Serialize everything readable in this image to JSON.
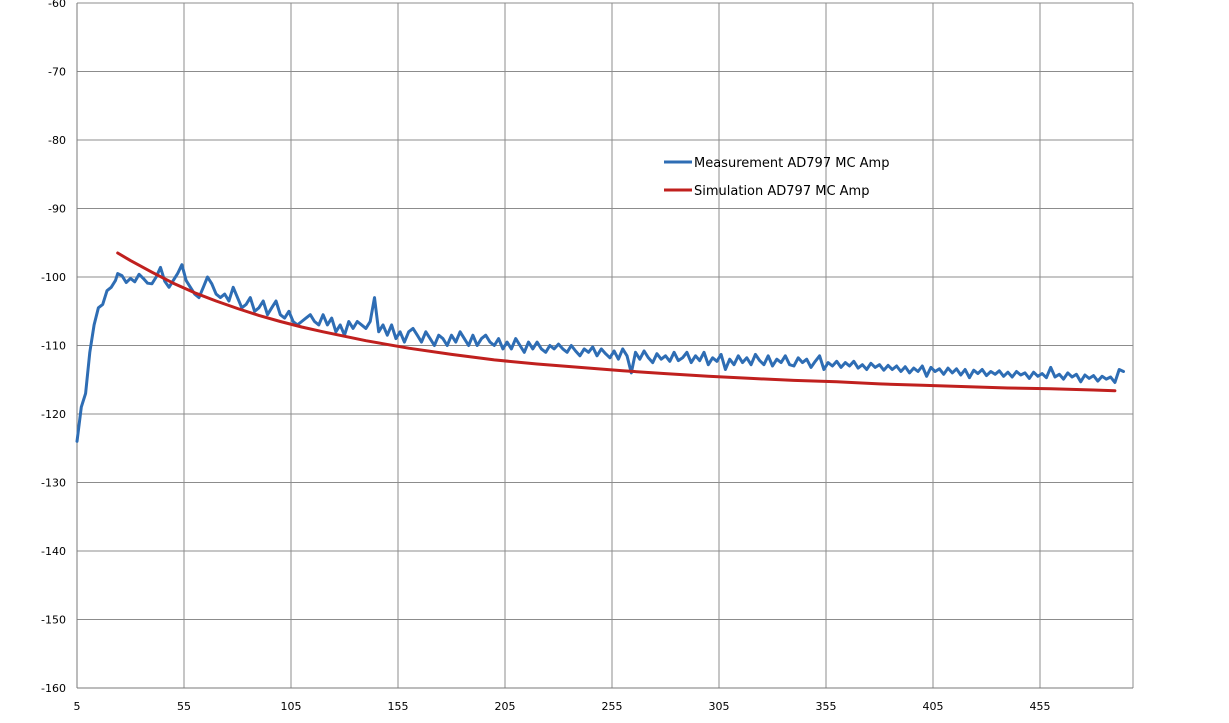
{
  "chart_data": {
    "type": "line",
    "title": "",
    "xlabel": "",
    "ylabel": "",
    "xlim": [
      5,
      495
    ],
    "ylim": [
      -160,
      -60
    ],
    "x_ticks": [
      "5",
      "55",
      "105",
      "155",
      "205",
      "255",
      "305",
      "355",
      "405",
      "455"
    ],
    "y_ticks": [
      "-60",
      "-70",
      "-80",
      "-90",
      "-100",
      "-110",
      "-120",
      "-130",
      "-140",
      "-150",
      "-160"
    ],
    "grid": true,
    "legend_position": "upper-right-center",
    "series": [
      {
        "name": "Measurement AD797 MC Amp",
        "color": "#2e6db4",
        "points": [
          [
            5,
            -124
          ],
          [
            7,
            -119
          ],
          [
            9,
            -117
          ],
          [
            11,
            -111
          ],
          [
            13,
            -107
          ],
          [
            15,
            -104.5
          ],
          [
            17,
            -104
          ],
          [
            19,
            -102
          ],
          [
            21,
            -101.5
          ],
          [
            23,
            -100.5
          ],
          [
            24,
            -99.5
          ],
          [
            26,
            -99.8
          ],
          [
            28,
            -100.8
          ],
          [
            30,
            -100.2
          ],
          [
            32,
            -100.7
          ],
          [
            34,
            -99.6
          ],
          [
            36,
            -100.2
          ],
          [
            38,
            -100.9
          ],
          [
            40,
            -101
          ],
          [
            42,
            -100
          ],
          [
            44,
            -98.6
          ],
          [
            46,
            -100.6
          ],
          [
            48,
            -101.5
          ],
          [
            50,
            -100.5
          ],
          [
            52,
            -99.5
          ],
          [
            54,
            -98.2
          ],
          [
            56,
            -100.5
          ],
          [
            58,
            -101.5
          ],
          [
            60,
            -102.5
          ],
          [
            62,
            -103
          ],
          [
            64,
            -101.5
          ],
          [
            66,
            -100
          ],
          [
            68,
            -101
          ],
          [
            70,
            -102.5
          ],
          [
            72,
            -103
          ],
          [
            74,
            -102.5
          ],
          [
            76,
            -103.5
          ],
          [
            78,
            -101.5
          ],
          [
            80,
            -103
          ],
          [
            82,
            -104.5
          ],
          [
            84,
            -104
          ],
          [
            86,
            -103
          ],
          [
            88,
            -105
          ],
          [
            90,
            -104.5
          ],
          [
            92,
            -103.5
          ],
          [
            94,
            -105.5
          ],
          [
            96,
            -104.5
          ],
          [
            98,
            -103.5
          ],
          [
            100,
            -105.5
          ],
          [
            102,
            -106
          ],
          [
            104,
            -105
          ],
          [
            106,
            -106.5
          ],
          [
            108,
            -107
          ],
          [
            110,
            -106.5
          ],
          [
            112,
            -106
          ],
          [
            114,
            -105.5
          ],
          [
            116,
            -106.5
          ],
          [
            118,
            -107
          ],
          [
            120,
            -105.5
          ],
          [
            122,
            -107
          ],
          [
            124,
            -106
          ],
          [
            126,
            -108
          ],
          [
            128,
            -107
          ],
          [
            130,
            -108.5
          ],
          [
            132,
            -106.5
          ],
          [
            134,
            -107.5
          ],
          [
            136,
            -106.5
          ],
          [
            138,
            -107
          ],
          [
            140,
            -107.5
          ],
          [
            142,
            -106.5
          ],
          [
            144,
            -103
          ],
          [
            146,
            -108
          ],
          [
            148,
            -107
          ],
          [
            150,
            -108.5
          ],
          [
            152,
            -107
          ],
          [
            154,
            -109
          ],
          [
            156,
            -108
          ],
          [
            158,
            -109.5
          ],
          [
            160,
            -108
          ],
          [
            162,
            -107.5
          ],
          [
            164,
            -108.5
          ],
          [
            166,
            -109.5
          ],
          [
            168,
            -108
          ],
          [
            170,
            -109
          ],
          [
            172,
            -110
          ],
          [
            174,
            -108.5
          ],
          [
            176,
            -109
          ],
          [
            178,
            -110
          ],
          [
            180,
            -108.5
          ],
          [
            182,
            -109.5
          ],
          [
            184,
            -108
          ],
          [
            186,
            -109
          ],
          [
            188,
            -110
          ],
          [
            190,
            -108.5
          ],
          [
            192,
            -110
          ],
          [
            194,
            -109
          ],
          [
            196,
            -108.5
          ],
          [
            198,
            -109.5
          ],
          [
            200,
            -110
          ],
          [
            202,
            -109
          ],
          [
            204,
            -110.5
          ],
          [
            206,
            -109.5
          ],
          [
            208,
            -110.5
          ],
          [
            210,
            -109
          ],
          [
            212,
            -110
          ],
          [
            214,
            -111
          ],
          [
            216,
            -109.5
          ],
          [
            218,
            -110.5
          ],
          [
            220,
            -109.5
          ],
          [
            222,
            -110.5
          ],
          [
            224,
            -111
          ],
          [
            226,
            -110
          ],
          [
            228,
            -110.5
          ],
          [
            230,
            -109.8
          ],
          [
            232,
            -110.5
          ],
          [
            234,
            -111
          ],
          [
            236,
            -110
          ],
          [
            238,
            -110.8
          ],
          [
            240,
            -111.5
          ],
          [
            242,
            -110.5
          ],
          [
            244,
            -111
          ],
          [
            246,
            -110.2
          ],
          [
            248,
            -111.5
          ],
          [
            250,
            -110.5
          ],
          [
            252,
            -111.2
          ],
          [
            254,
            -111.8
          ],
          [
            256,
            -110.8
          ],
          [
            258,
            -112
          ],
          [
            260,
            -110.5
          ],
          [
            262,
            -111.5
          ],
          [
            264,
            -114
          ],
          [
            266,
            -111
          ],
          [
            268,
            -112
          ],
          [
            270,
            -110.8
          ],
          [
            272,
            -111.8
          ],
          [
            274,
            -112.5
          ],
          [
            276,
            -111.2
          ],
          [
            278,
            -112
          ],
          [
            280,
            -111.5
          ],
          [
            282,
            -112.3
          ],
          [
            284,
            -111
          ],
          [
            286,
            -112.2
          ],
          [
            288,
            -111.8
          ],
          [
            290,
            -111
          ],
          [
            292,
            -112.5
          ],
          [
            294,
            -111.5
          ],
          [
            296,
            -112.2
          ],
          [
            298,
            -111
          ],
          [
            300,
            -112.8
          ],
          [
            302,
            -111.8
          ],
          [
            304,
            -112.3
          ],
          [
            306,
            -111.3
          ],
          [
            308,
            -113.5
          ],
          [
            310,
            -112
          ],
          [
            312,
            -112.8
          ],
          [
            314,
            -111.5
          ],
          [
            316,
            -112.5
          ],
          [
            318,
            -111.8
          ],
          [
            320,
            -112.8
          ],
          [
            322,
            -111.3
          ],
          [
            324,
            -112.2
          ],
          [
            326,
            -112.8
          ],
          [
            328,
            -111.5
          ],
          [
            330,
            -113
          ],
          [
            332,
            -112
          ],
          [
            334,
            -112.5
          ],
          [
            336,
            -111.5
          ],
          [
            338,
            -112.8
          ],
          [
            340,
            -113
          ],
          [
            342,
            -111.8
          ],
          [
            344,
            -112.5
          ],
          [
            346,
            -112
          ],
          [
            348,
            -113.2
          ],
          [
            350,
            -112.3
          ],
          [
            352,
            -111.5
          ],
          [
            354,
            -113.5
          ],
          [
            356,
            -112.5
          ],
          [
            358,
            -113
          ],
          [
            360,
            -112.3
          ],
          [
            362,
            -113.2
          ],
          [
            364,
            -112.5
          ],
          [
            366,
            -113
          ],
          [
            368,
            -112.3
          ],
          [
            370,
            -113.3
          ],
          [
            372,
            -112.8
          ],
          [
            374,
            -113.5
          ],
          [
            376,
            -112.6
          ],
          [
            378,
            -113.2
          ],
          [
            380,
            -112.8
          ],
          [
            382,
            -113.6
          ],
          [
            384,
            -112.9
          ],
          [
            386,
            -113.5
          ],
          [
            388,
            -113
          ],
          [
            390,
            -113.8
          ],
          [
            392,
            -113.1
          ],
          [
            394,
            -114
          ],
          [
            396,
            -113.3
          ],
          [
            398,
            -113.8
          ],
          [
            400,
            -113
          ],
          [
            402,
            -114.5
          ],
          [
            404,
            -113.2
          ],
          [
            406,
            -113.8
          ],
          [
            408,
            -113.4
          ],
          [
            410,
            -114.2
          ],
          [
            412,
            -113.3
          ],
          [
            414,
            -114
          ],
          [
            416,
            -113.4
          ],
          [
            418,
            -114.3
          ],
          [
            420,
            -113.5
          ],
          [
            422,
            -114.7
          ],
          [
            424,
            -113.6
          ],
          [
            426,
            -114.1
          ],
          [
            428,
            -113.5
          ],
          [
            430,
            -114.4
          ],
          [
            432,
            -113.8
          ],
          [
            434,
            -114.2
          ],
          [
            436,
            -113.7
          ],
          [
            438,
            -114.5
          ],
          [
            440,
            -113.9
          ],
          [
            442,
            -114.6
          ],
          [
            444,
            -113.8
          ],
          [
            446,
            -114.3
          ],
          [
            448,
            -114
          ],
          [
            450,
            -114.8
          ],
          [
            452,
            -113.9
          ],
          [
            454,
            -114.5
          ],
          [
            456,
            -114.1
          ],
          [
            458,
            -114.7
          ],
          [
            460,
            -113.2
          ],
          [
            462,
            -114.6
          ],
          [
            464,
            -114.2
          ],
          [
            466,
            -114.9
          ],
          [
            468,
            -114
          ],
          [
            470,
            -114.6
          ],
          [
            472,
            -114.2
          ],
          [
            474,
            -115.3
          ],
          [
            476,
            -114.3
          ],
          [
            478,
            -114.8
          ],
          [
            480,
            -114.4
          ],
          [
            482,
            -115.2
          ],
          [
            484,
            -114.5
          ],
          [
            486,
            -114.9
          ],
          [
            488,
            -114.6
          ],
          [
            490,
            -115.4
          ],
          [
            492,
            -113.5
          ],
          [
            494,
            -113.8
          ]
        ]
      },
      {
        "name": "Simulation AD797 MC Amp",
        "color": "#c0201e",
        "points": [
          [
            24,
            -96.5
          ],
          [
            30,
            -97.6
          ],
          [
            40,
            -99.3
          ],
          [
            50,
            -100.9
          ],
          [
            60,
            -102.3
          ],
          [
            70,
            -103.5
          ],
          [
            80,
            -104.6
          ],
          [
            90,
            -105.6
          ],
          [
            100,
            -106.5
          ],
          [
            110,
            -107.3
          ],
          [
            120,
            -108
          ],
          [
            140,
            -109.3
          ],
          [
            160,
            -110.4
          ],
          [
            180,
            -111.3
          ],
          [
            200,
            -112.1
          ],
          [
            220,
            -112.7
          ],
          [
            240,
            -113.2
          ],
          [
            260,
            -113.7
          ],
          [
            280,
            -114.1
          ],
          [
            300,
            -114.5
          ],
          [
            320,
            -114.8
          ],
          [
            340,
            -115.1
          ],
          [
            360,
            -115.3
          ],
          [
            380,
            -115.6
          ],
          [
            400,
            -115.8
          ],
          [
            420,
            -116
          ],
          [
            440,
            -116.2
          ],
          [
            460,
            -116.3
          ],
          [
            480,
            -116.5
          ],
          [
            490,
            -116.6
          ]
        ]
      }
    ]
  }
}
